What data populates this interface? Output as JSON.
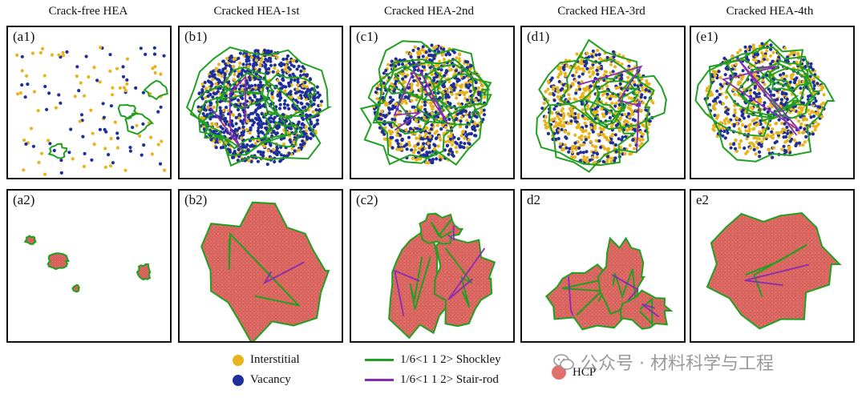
{
  "columns": [
    {
      "title": "Crack-free HEA",
      "top_label": "(a1)",
      "bottom_label": "(a2)"
    },
    {
      "title": "Cracked HEA-1st",
      "top_label": "(b1)",
      "bottom_label": "(b2)"
    },
    {
      "title": "Cracked HEA-2nd",
      "top_label": "(c1)",
      "bottom_label": "(c2)"
    },
    {
      "title": "Cracked HEA-3rd",
      "top_label": "(d1)",
      "bottom_label": "d2"
    },
    {
      "title": "Cracked HEA-4th",
      "top_label": "(e1)",
      "bottom_label": "e2"
    }
  ],
  "legend": {
    "interstitial": "Interstitial",
    "vacancy": "Vacancy",
    "shockley": "1/6<1 1 2> Shockley",
    "stair_rod": "1/6<1 1 2>  Stair-rod",
    "hcp": "HCP"
  },
  "colors": {
    "interstitial": "#e8b41c",
    "vacancy": "#1f2f9a",
    "shockley": "#20a020",
    "stair_rod": "#8a2bb5",
    "hcp": "#e0706a",
    "hcp_dark": "#c9504a"
  },
  "watermark": "公众号 · 材料科学与工程"
}
